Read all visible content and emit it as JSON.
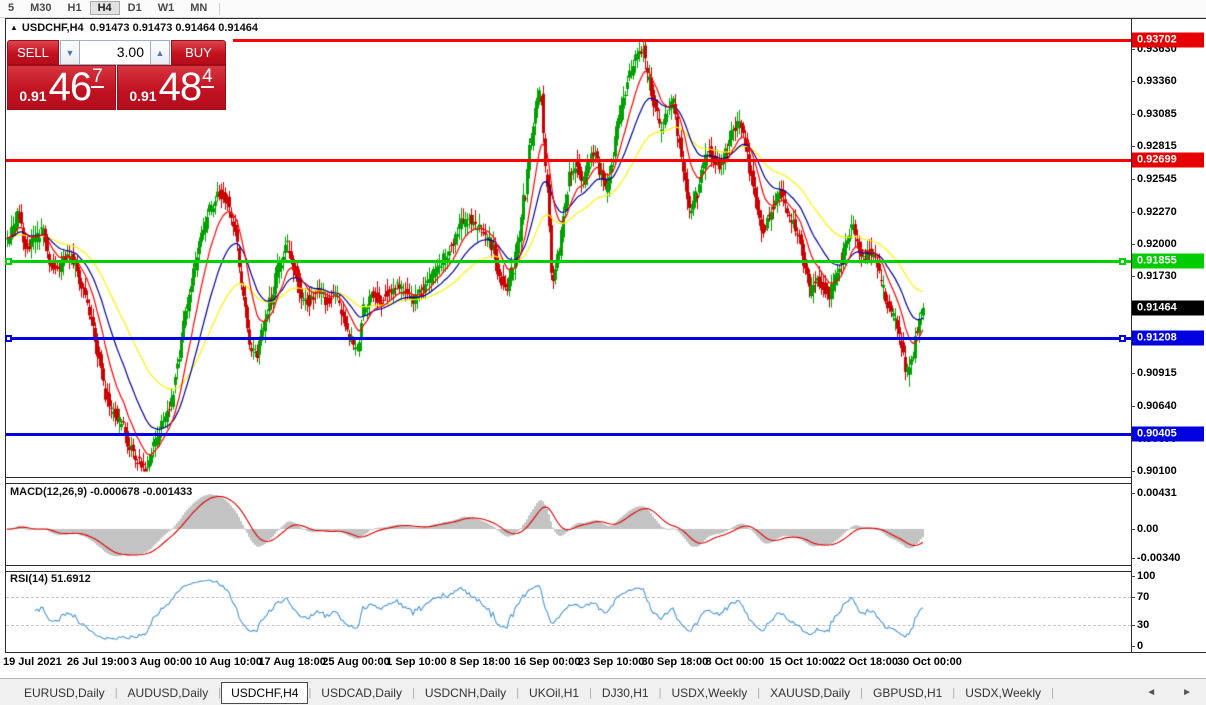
{
  "toolbar": {
    "items": [
      "5",
      "M30",
      "H1",
      "H4",
      "D1",
      "W1",
      "MN"
    ],
    "active": "H4"
  },
  "chart_header": {
    "symbol": "USDCHF,H4",
    "quotes": "0.91473 0.91473 0.91464 0.91464"
  },
  "trade_panel": {
    "sell_label": "SELL",
    "buy_label": "BUY",
    "volume": "3.00",
    "sell_price_prefix": "0.91",
    "sell_price_big": "46",
    "sell_price_sup": "7",
    "buy_price_prefix": "0.91",
    "buy_price_big": "48",
    "buy_price_sup": "4"
  },
  "price_axis": {
    "ticks": [
      "0.93630",
      "0.93360",
      "0.93085",
      "0.92815",
      "0.92545",
      "0.92270",
      "0.92000",
      "0.91730",
      "0.91460",
      "0.91185",
      "0.90915",
      "0.90640",
      "0.90370",
      "0.90100"
    ]
  },
  "levels": [
    {
      "price": "0.93702",
      "color": "red",
      "handles": false
    },
    {
      "price": "0.92699",
      "color": "red",
      "handles": false
    },
    {
      "price": "0.91855",
      "color": "green",
      "handles": true
    },
    {
      "price": "0.91208",
      "color": "blue",
      "handles": true
    },
    {
      "price": "0.90405",
      "color": "blue",
      "handles": false
    }
  ],
  "current_price": "0.91464",
  "macd": {
    "label": "MACD(12,26,9) -0.000678 -0.001433",
    "ticks": [
      {
        "label": "0.00431",
        "value": 0.00431
      },
      {
        "label": "0.00",
        "value": 0.0
      },
      {
        "label": "-0.00340",
        "value": -0.0034
      }
    ]
  },
  "rsi": {
    "label": "RSI(14) 51.6912",
    "ticks": [
      {
        "label": "100",
        "value": 100
      },
      {
        "label": "70",
        "value": 70
      },
      {
        "label": "30",
        "value": 30
      },
      {
        "label": "0",
        "value": 0
      }
    ],
    "levels": [
      70,
      30
    ]
  },
  "time_axis": [
    "19 Jul 2021",
    "26 Jul 19:00",
    "3 Aug 00:00",
    "10 Aug 10:00",
    "17 Aug 18:00",
    "25 Aug 00:00",
    "1 Sep 10:00",
    "8 Sep 18:00",
    "16 Sep 00:00",
    "23 Sep 10:00",
    "30 Sep 18:00",
    "8 Oct 00:00",
    "15 Oct 10:00",
    "22 Oct 18:00",
    "30 Oct 00:00"
  ],
  "tabs": {
    "items": [
      "EURUSD,Daily",
      "AUDUSD,Daily",
      "USDCHF,H4",
      "USDCAD,Daily",
      "USDCNH,Daily",
      "UKOil,H1",
      "DJ30,H1",
      "USDX,Weekly",
      "XAUUSD,Daily",
      "GBPUSD,H1",
      "USDX,Weekly"
    ],
    "active_index": 2,
    "left_arrow": "◄",
    "right_arrow": "►"
  },
  "colors": {
    "candle_up": "#00a000",
    "candle_down": "#cc0000",
    "ma_fast": "#ff0000",
    "ma_mid": "#000099",
    "ma_slow": "#ffef00",
    "macd_hist": "#c3c3c3",
    "macd_signal": "#e00000",
    "rsi_line": "#4a96d8",
    "level_red": "#ff0000",
    "level_green": "#00d200",
    "level_blue": "#0000e0",
    "badge_red": "#e60000",
    "badge_green": "#00cc00",
    "badge_blue": "#0000e0",
    "badge_current": "#000000"
  },
  "chart_data": {
    "type": "candlestick",
    "symbol": "USDCHF",
    "timeframe": "H4",
    "last_close": 0.91464,
    "price_levels": [
      0.93702,
      0.92699,
      0.91855,
      0.91208,
      0.90405
    ],
    "visible_price_range": [
      0.8977,
      0.9374
    ],
    "moving_averages": [
      {
        "name": "fast",
        "period": 12,
        "color": "#ff0000"
      },
      {
        "name": "mid",
        "period": 26,
        "color": "#000099"
      },
      {
        "name": "slow",
        "period": 55,
        "color": "#ffef00"
      }
    ],
    "macd": {
      "fast": 12,
      "slow": 26,
      "signal": 9,
      "value": -0.000678,
      "signal_value": -0.001433
    },
    "rsi": {
      "period": 14,
      "value": 51.6912
    },
    "price_anchors": [
      [
        7,
        0.92
      ],
      [
        14,
        0.9212
      ],
      [
        20,
        0.9224
      ],
      [
        28,
        0.9196
      ],
      [
        36,
        0.9203
      ],
      [
        44,
        0.9211
      ],
      [
        52,
        0.9184
      ],
      [
        60,
        0.9179
      ],
      [
        68,
        0.919
      ],
      [
        76,
        0.9186
      ],
      [
        84,
        0.9161
      ],
      [
        92,
        0.9141
      ],
      [
        100,
        0.9106
      ],
      [
        108,
        0.9071
      ],
      [
        116,
        0.9058
      ],
      [
        124,
        0.9048
      ],
      [
        132,
        0.9028
      ],
      [
        140,
        0.9018
      ],
      [
        148,
        0.9013
      ],
      [
        156,
        0.9034
      ],
      [
        164,
        0.9048
      ],
      [
        172,
        0.9066
      ],
      [
        180,
        0.9105
      ],
      [
        188,
        0.9144
      ],
      [
        196,
        0.918
      ],
      [
        204,
        0.921
      ],
      [
        212,
        0.923
      ],
      [
        220,
        0.9242
      ],
      [
        228,
        0.9238
      ],
      [
        236,
        0.9214
      ],
      [
        244,
        0.9161
      ],
      [
        252,
        0.9113
      ],
      [
        258,
        0.9106
      ],
      [
        264,
        0.913
      ],
      [
        272,
        0.9152
      ],
      [
        280,
        0.918
      ],
      [
        288,
        0.9199
      ],
      [
        296,
        0.9178
      ],
      [
        304,
        0.9156
      ],
      [
        312,
        0.9152
      ],
      [
        320,
        0.9163
      ],
      [
        328,
        0.9152
      ],
      [
        336,
        0.9158
      ],
      [
        344,
        0.9141
      ],
      [
        352,
        0.9119
      ],
      [
        358,
        0.9108
      ],
      [
        366,
        0.9147
      ],
      [
        374,
        0.9159
      ],
      [
        382,
        0.9152
      ],
      [
        390,
        0.916
      ],
      [
        398,
        0.9164
      ],
      [
        406,
        0.9162
      ],
      [
        414,
        0.9152
      ],
      [
        422,
        0.916
      ],
      [
        430,
        0.9168
      ],
      [
        438,
        0.9178
      ],
      [
        446,
        0.9188
      ],
      [
        454,
        0.92
      ],
      [
        462,
        0.9217
      ],
      [
        470,
        0.9221
      ],
      [
        478,
        0.9214
      ],
      [
        486,
        0.9209
      ],
      [
        494,
        0.9198
      ],
      [
        502,
        0.9169
      ],
      [
        508,
        0.9163
      ],
      [
        514,
        0.9178
      ],
      [
        520,
        0.9204
      ],
      [
        526,
        0.9239
      ],
      [
        532,
        0.9284
      ],
      [
        538,
        0.9318
      ],
      [
        542,
        0.9327
      ],
      [
        548,
        0.9256
      ],
      [
        554,
        0.9168
      ],
      [
        560,
        0.9189
      ],
      [
        566,
        0.9228
      ],
      [
        572,
        0.926
      ],
      [
        578,
        0.9267
      ],
      [
        584,
        0.9252
      ],
      [
        590,
        0.9267
      ],
      [
        596,
        0.9278
      ],
      [
        602,
        0.9258
      ],
      [
        608,
        0.9246
      ],
      [
        614,
        0.9271
      ],
      [
        620,
        0.9303
      ],
      [
        626,
        0.9328
      ],
      [
        632,
        0.9344
      ],
      [
        638,
        0.9357
      ],
      [
        644,
        0.9364
      ],
      [
        650,
        0.9339
      ],
      [
        656,
        0.9317
      ],
      [
        662,
        0.9297
      ],
      [
        668,
        0.9309
      ],
      [
        674,
        0.932
      ],
      [
        680,
        0.9289
      ],
      [
        686,
        0.9254
      ],
      [
        692,
        0.9228
      ],
      [
        698,
        0.9241
      ],
      [
        704,
        0.9263
      ],
      [
        710,
        0.9279
      ],
      [
        716,
        0.9271
      ],
      [
        722,
        0.9264
      ],
      [
        728,
        0.9277
      ],
      [
        734,
        0.9293
      ],
      [
        740,
        0.9304
      ],
      [
        746,
        0.9287
      ],
      [
        752,
        0.9259
      ],
      [
        758,
        0.9234
      ],
      [
        764,
        0.9211
      ],
      [
        770,
        0.9221
      ],
      [
        776,
        0.9234
      ],
      [
        782,
        0.9244
      ],
      [
        788,
        0.9229
      ],
      [
        794,
        0.9217
      ],
      [
        800,
        0.9207
      ],
      [
        806,
        0.9184
      ],
      [
        812,
        0.9159
      ],
      [
        818,
        0.9171
      ],
      [
        824,
        0.9164
      ],
      [
        830,
        0.9157
      ],
      [
        836,
        0.9169
      ],
      [
        842,
        0.9184
      ],
      [
        848,
        0.9204
      ],
      [
        854,
        0.9214
      ],
      [
        860,
        0.9197
      ],
      [
        866,
        0.9189
      ],
      [
        872,
        0.9194
      ],
      [
        878,
        0.9184
      ],
      [
        884,
        0.9164
      ],
      [
        890,
        0.9147
      ],
      [
        896,
        0.9139
      ],
      [
        902,
        0.9119
      ],
      [
        908,
        0.9094
      ],
      [
        914,
        0.9101
      ],
      [
        918,
        0.9127
      ],
      [
        922,
        0.9139
      ],
      [
        925,
        0.9146
      ]
    ]
  }
}
